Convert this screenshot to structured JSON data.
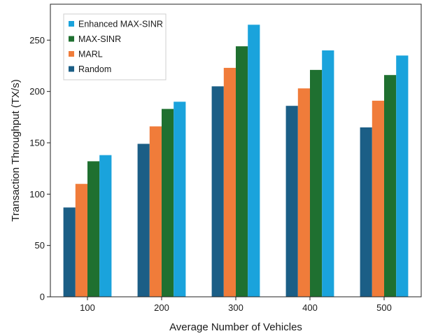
{
  "chart_data": {
    "type": "bar",
    "title": "",
    "xlabel": "Average Number of Vehicles",
    "ylabel": "Transaction Throughput (TX/s)",
    "categories": [
      "100",
      "200",
      "300",
      "400",
      "500"
    ],
    "ylim": [
      0,
      285
    ],
    "yticks": [
      "0",
      "50",
      "100",
      "150",
      "200",
      "250"
    ],
    "series": [
      {
        "name": "Random",
        "color": "#1b5e86",
        "values": [
          87,
          149,
          205,
          186,
          165
        ]
      },
      {
        "name": "MARL",
        "color": "#f07c3a",
        "values": [
          110,
          166,
          223,
          203,
          191
        ]
      },
      {
        "name": "MAX-SINR",
        "color": "#1f7030",
        "values": [
          132,
          183,
          244,
          221,
          216
        ]
      },
      {
        "name": "Enhanced MAX-SINR",
        "color": "#1aa3dc",
        "values": [
          138,
          190,
          265,
          240,
          235
        ]
      }
    ],
    "legend": {
      "placement": "top-left",
      "order": [
        "Enhanced MAX-SINR",
        "MAX-SINR",
        "MARL",
        "Random"
      ]
    },
    "grid": false
  }
}
